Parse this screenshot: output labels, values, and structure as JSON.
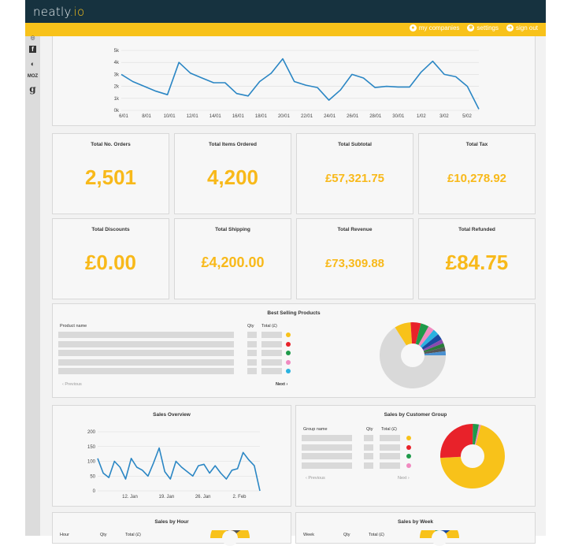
{
  "app": {
    "logo": "neatly",
    "logo_suffix": ".io"
  },
  "usernav": {
    "companies": "my companies",
    "settings": "settings",
    "signout": "sign out"
  },
  "rail": {
    "top": "◎",
    "facebook": "f",
    "twitter": "◐",
    "moz": "MOZ",
    "google": "g"
  },
  "top_chart": {
    "ylabels": [
      "5k",
      "4k",
      "3k",
      "2k",
      "1k",
      "0k"
    ],
    "xlabels": [
      "6/01",
      "8/01",
      "10/01",
      "12/01",
      "14/01",
      "16/01",
      "18/01",
      "20/01",
      "22/01",
      "24/01",
      "26/01",
      "28/01",
      "30/01",
      "1/02",
      "3/02",
      "5/02"
    ],
    "values": [
      3000,
      2400,
      2000,
      1600,
      1300,
      4000,
      3100,
      2700,
      2300,
      2300,
      1400,
      1200,
      2400,
      3100,
      4300,
      2400,
      2100,
      1900,
      850,
      1700,
      3000,
      2700,
      1900,
      2000,
      1950,
      1950,
      3200,
      4100,
      3000,
      2800,
      2000,
      100
    ]
  },
  "stats": [
    {
      "title": "Total No. Orders",
      "value": "2,501",
      "size": "big"
    },
    {
      "title": "Total Items Ordered",
      "value": "4,200",
      "size": "big"
    },
    {
      "title": "Total Subtotal",
      "value": "£57,321.75",
      "size": "mid"
    },
    {
      "title": "Total Tax",
      "value": "£10,278.92",
      "size": "mid"
    },
    {
      "title": "Total Discounts",
      "value": "£0.00",
      "size": "big"
    },
    {
      "title": "Total Shipping",
      "value": "£4,200.00",
      "size": "mid2"
    },
    {
      "title": "Total Revenue",
      "value": "£73,309.88",
      "size": "mid"
    },
    {
      "title": "Total Refunded",
      "value": "£84.75",
      "size": "big"
    }
  ],
  "best_selling": {
    "title": "Best Selling Products",
    "col_name": "Product name",
    "col_qty": "Qty",
    "col_total": "Total (£)",
    "dots": [
      "#f8c21a",
      "#e8222a",
      "#1f9a4a",
      "#f08ac0",
      "#2ab2e0"
    ],
    "prev": "‹ Previous",
    "next": "Next ›",
    "pie": [
      {
        "value": 66,
        "color": "#d9d9d9"
      },
      {
        "value": 8,
        "color": "#f8c21a"
      },
      {
        "value": 5,
        "color": "#e8222a"
      },
      {
        "value": 4,
        "color": "#1f9a4a"
      },
      {
        "value": 3,
        "color": "#f08ac0"
      },
      {
        "value": 3,
        "color": "#2ab2e0"
      },
      {
        "value": 3,
        "color": "#1a4aa0"
      },
      {
        "value": 2,
        "color": "#8a4ab0"
      },
      {
        "value": 2,
        "color": "#2a7a3a"
      },
      {
        "value": 2,
        "color": "#555555"
      },
      {
        "value": 2,
        "color": "#4a90d0"
      }
    ]
  },
  "sales_overview": {
    "title": "Sales Overview",
    "ylabels": [
      "200",
      "150",
      "100",
      "50",
      "0"
    ],
    "xlabels": [
      "12. Jan",
      "19. Jan",
      "26. Jan",
      "2. Feb"
    ],
    "values": [
      110,
      60,
      45,
      100,
      80,
      40,
      110,
      80,
      70,
      50,
      95,
      145,
      65,
      40,
      100,
      80,
      65,
      50,
      85,
      90,
      60,
      85,
      60,
      40,
      70,
      75,
      130,
      105,
      85,
      0
    ]
  },
  "customer_group": {
    "title": "Sales by Customer Group",
    "col_name": "Group name",
    "col_qty": "Qty",
    "col_total": "Total (£)",
    "dots": [
      "#f8c21a",
      "#e8222a",
      "#1f9a4a",
      "#f08ac0"
    ],
    "prev": "‹ Previous",
    "next": "Next ›",
    "pie": [
      {
        "value": 70,
        "color": "#f8c21a"
      },
      {
        "value": 26,
        "color": "#e8222a"
      },
      {
        "value": 3,
        "color": "#1f9a4a"
      },
      {
        "value": 1,
        "color": "#f08ac0"
      }
    ]
  },
  "by_hour": {
    "title": "Sales by Hour",
    "col_name": "Hour",
    "col_qty": "Qty",
    "col_total": "Total (£)"
  },
  "by_week": {
    "title": "Sales by Week",
    "col_name": "Week",
    "col_qty": "Qty",
    "col_total": "Total (£)"
  }
}
